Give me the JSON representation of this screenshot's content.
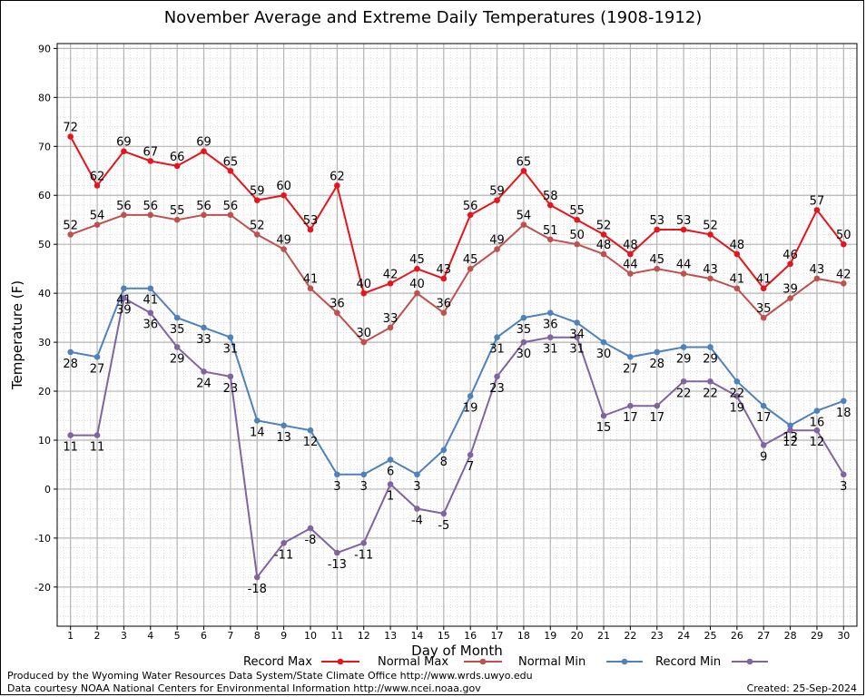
{
  "chart_data": {
    "type": "line",
    "title": "November Average and Extreme Daily Temperatures (1908-1912)",
    "xlabel": "Day of Month",
    "ylabel": "Temperature (F)",
    "xlim": [
      0.5,
      30.5
    ],
    "ylim": [
      -28,
      91
    ],
    "yticks": [
      -20,
      -10,
      0,
      10,
      20,
      30,
      40,
      50,
      60,
      70,
      80,
      90
    ],
    "x": [
      1,
      2,
      3,
      4,
      5,
      6,
      7,
      8,
      9,
      10,
      11,
      12,
      13,
      14,
      15,
      16,
      17,
      18,
      19,
      20,
      21,
      22,
      23,
      24,
      25,
      26,
      27,
      28,
      29,
      30
    ],
    "grid": true,
    "legend_position": "bottom",
    "series": [
      {
        "name": "Record Max",
        "color": "#e8141c",
        "label_pos": "above",
        "values": [
          72,
          62,
          69,
          67,
          66,
          69,
          65,
          59,
          60,
          53,
          62,
          40,
          42,
          45,
          43,
          56,
          59,
          65,
          58,
          55,
          52,
          48,
          53,
          53,
          52,
          48,
          41,
          46,
          57,
          50
        ]
      },
      {
        "name": "Normal Max",
        "color": "#c0504d",
        "label_pos": "above",
        "values": [
          52,
          54,
          56,
          56,
          55,
          56,
          56,
          52,
          49,
          41,
          36,
          30,
          33,
          40,
          36,
          45,
          49,
          54,
          51,
          50,
          48,
          44,
          45,
          44,
          43,
          41,
          35,
          39,
          43,
          42
        ]
      },
      {
        "name": "Normal Min",
        "color": "#4f81bd",
        "label_pos": "below",
        "values": [
          28,
          27,
          41,
          41,
          35,
          33,
          31,
          14,
          13,
          12,
          3,
          3,
          6,
          3,
          8,
          19,
          31,
          35,
          36,
          34,
          30,
          27,
          28,
          29,
          29,
          22,
          17,
          13,
          16,
          18
        ]
      },
      {
        "name": "Record Min",
        "color": "#8064a2",
        "label_pos": "below",
        "values": [
          11,
          11,
          39,
          36,
          29,
          24,
          23,
          -18,
          -11,
          -8,
          -13,
          -11,
          1,
          -4,
          -5,
          7,
          23,
          30,
          31,
          31,
          15,
          17,
          17,
          22,
          22,
          19,
          9,
          12,
          12,
          3
        ]
      }
    ]
  },
  "footer": {
    "produced_by": "Produced by the Wyoming Water Resources Data System/State Climate Office http://www.wrds.uwyo.edu",
    "data_courtesy": "Data courtesy NOAA National Centers for Environmental Information http://www.ncei.noaa.gov",
    "created": "Created:  25-Sep-2024"
  }
}
